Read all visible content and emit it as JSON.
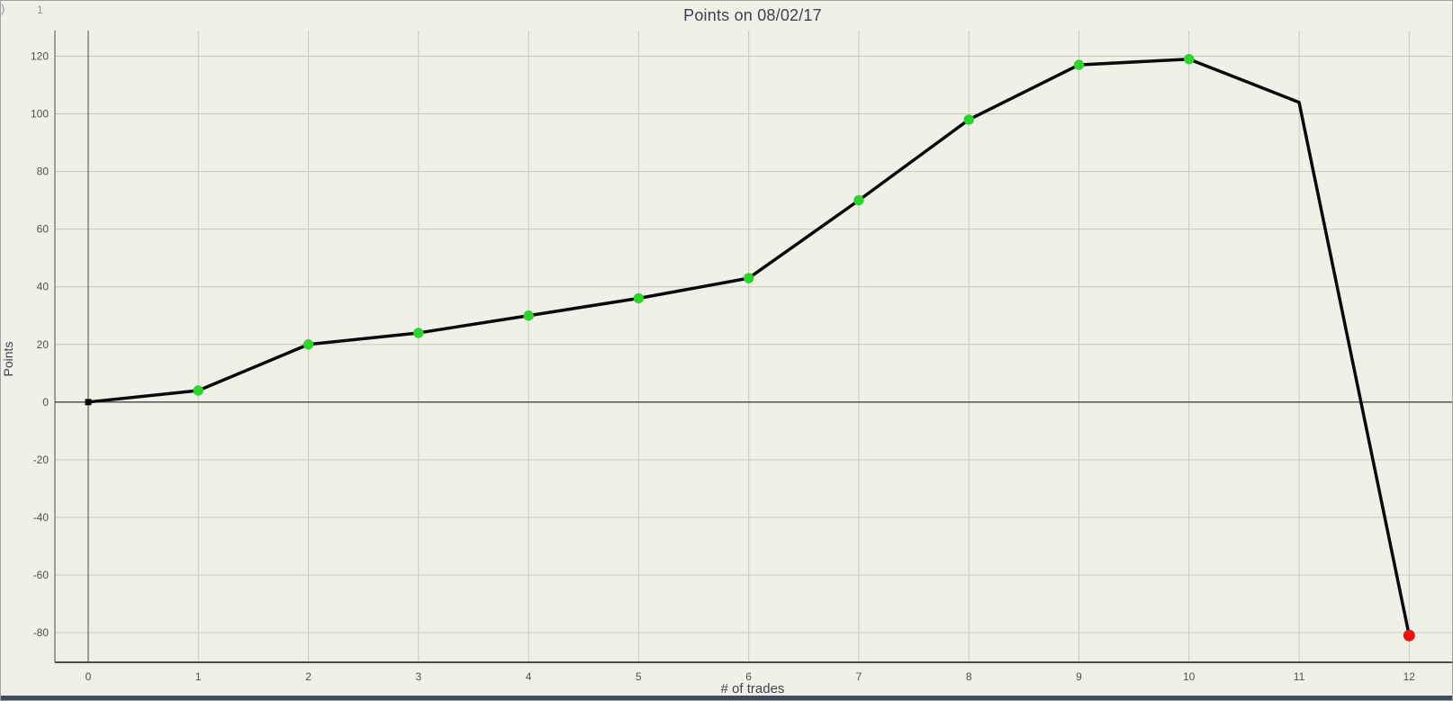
{
  "window": {
    "corner_artifact": ")",
    "corner_number": "1"
  },
  "chart_data": {
    "type": "line",
    "title": "Points on 08/02/17",
    "xlabel": "# of trades",
    "ylabel": "Points",
    "x": [
      0,
      1,
      2,
      3,
      4,
      5,
      6,
      7,
      8,
      9,
      10,
      11,
      12
    ],
    "values": [
      0,
      4,
      20,
      24,
      30,
      36,
      43,
      70,
      98,
      117,
      119,
      104,
      -81
    ],
    "x_ticks": [
      "0",
      "1",
      "2",
      "3",
      "4",
      "5",
      "6",
      "7",
      "8",
      "9",
      "10",
      "11",
      "12"
    ],
    "y_ticks": [
      "-80",
      "-60",
      "-40",
      "-20",
      "0",
      "20",
      "40",
      "60",
      "80",
      "100",
      "120"
    ],
    "xlim": [
      0,
      12.39
    ],
    "ylim": [
      -90.3,
      128.9
    ],
    "grid": true,
    "legend": "none",
    "markers": [
      "black-square",
      "green",
      "green",
      "green",
      "green",
      "green",
      "green",
      "green",
      "green",
      "green",
      "green",
      "none",
      "red"
    ],
    "colors": {
      "background": "#f0f0e9",
      "gridline": "#c9c9c2",
      "axis": "#4a4a46",
      "zero_line": "#454541",
      "line": "#0a0a0a",
      "marker_green": "#2fd32f",
      "marker_red": "#e81414",
      "title_text": "#3d424d",
      "tick_text": "#50504b",
      "bottom_bar": "#3d4c63",
      "border": "#a2a29a"
    }
  }
}
